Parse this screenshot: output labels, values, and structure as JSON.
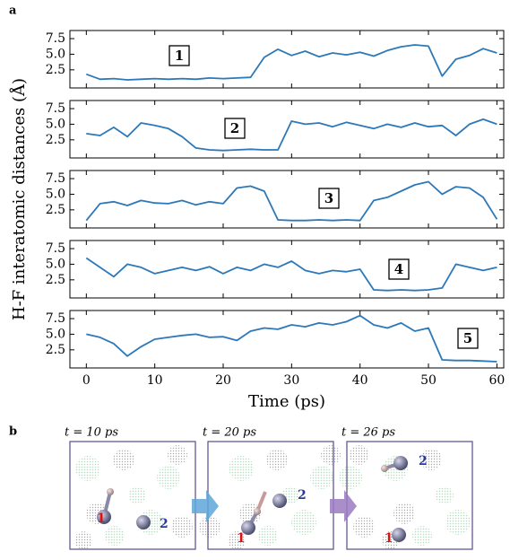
{
  "panel_a_label": "a",
  "shared_ylabel": "H-F interatomic distances (Å)",
  "chart_data": [
    {
      "type": "line",
      "annotation": "1",
      "color": "#2c78b8",
      "x": [
        0,
        2,
        4,
        6,
        8,
        10,
        12,
        14,
        16,
        18,
        20,
        22,
        24,
        26,
        28,
        30,
        32,
        34,
        36,
        38,
        40,
        42,
        44,
        46,
        48,
        50,
        52,
        54,
        56,
        58,
        60
      ],
      "values": [
        1.8,
        1.0,
        1.1,
        0.9,
        1.0,
        1.1,
        1.0,
        1.1,
        1.0,
        1.2,
        1.1,
        1.2,
        1.3,
        4.5,
        5.8,
        4.8,
        5.5,
        4.6,
        5.2,
        4.9,
        5.3,
        4.7,
        5.6,
        6.2,
        6.5,
        6.3,
        1.5,
        4.2,
        4.8,
        5.9,
        5.2
      ],
      "xlim": [
        -2.4,
        61
      ],
      "ylim": [
        -0.4,
        8.8
      ],
      "yticks": [
        2.5,
        {
          "value": 5,
          "label": "5.0"
        },
        7.5
      ],
      "xticks": [
        0,
        10,
        20,
        30,
        40,
        50,
        60
      ],
      "show_xtick_labels": false
    },
    {
      "type": "line",
      "annotation": "2",
      "color": "#2c78b8",
      "x": [
        0,
        2,
        4,
        6,
        8,
        10,
        12,
        14,
        16,
        18,
        20,
        22,
        24,
        26,
        28,
        30,
        32,
        34,
        36,
        38,
        40,
        42,
        44,
        46,
        48,
        50,
        52,
        54,
        56,
        58,
        60
      ],
      "values": [
        3.5,
        3.2,
        4.5,
        3.0,
        5.2,
        4.8,
        4.3,
        3.0,
        1.2,
        0.9,
        0.8,
        0.9,
        1.0,
        0.9,
        0.9,
        5.5,
        5.0,
        5.2,
        4.6,
        5.3,
        4.8,
        4.3,
        5.0,
        4.5,
        5.2,
        4.6,
        4.8,
        3.2,
        5.0,
        5.8,
        5.0
      ],
      "xlim": [
        -2.4,
        61
      ],
      "ylim": [
        -0.4,
        8.8
      ],
      "yticks": [
        2.5,
        {
          "value": 5,
          "label": "5.0"
        },
        7.5
      ],
      "xticks": [
        0,
        10,
        20,
        30,
        40,
        50,
        60
      ],
      "show_xtick_labels": false
    },
    {
      "type": "line",
      "annotation": "3",
      "color": "#2c78b8",
      "x": [
        0,
        2,
        4,
        6,
        8,
        10,
        12,
        14,
        16,
        18,
        20,
        22,
        24,
        26,
        28,
        30,
        32,
        34,
        36,
        38,
        40,
        42,
        44,
        46,
        48,
        50,
        52,
        54,
        56,
        58,
        60
      ],
      "values": [
        0.8,
        3.5,
        3.8,
        3.2,
        4.0,
        3.6,
        3.5,
        4.0,
        3.3,
        3.8,
        3.5,
        6.0,
        6.3,
        5.5,
        0.9,
        0.8,
        0.8,
        0.9,
        0.8,
        0.9,
        0.8,
        4.0,
        4.5,
        5.5,
        6.5,
        7.0,
        5.0,
        6.2,
        6.0,
        4.5,
        1.0
      ],
      "xlim": [
        -2.4,
        61
      ],
      "ylim": [
        -0.4,
        8.8
      ],
      "yticks": [
        2.5,
        {
          "value": 5,
          "label": "5.0"
        },
        7.5
      ],
      "xticks": [
        0,
        10,
        20,
        30,
        40,
        50,
        60
      ],
      "show_xtick_labels": false
    },
    {
      "type": "line",
      "annotation": "4",
      "color": "#2c78b8",
      "x": [
        0,
        2,
        4,
        6,
        8,
        10,
        12,
        14,
        16,
        18,
        20,
        22,
        24,
        26,
        28,
        30,
        32,
        34,
        36,
        38,
        40,
        42,
        44,
        46,
        48,
        50,
        52,
        54,
        56,
        58,
        60
      ],
      "values": [
        6.0,
        4.5,
        3.0,
        5.0,
        4.5,
        3.5,
        4.0,
        4.5,
        4.0,
        4.6,
        3.5,
        4.5,
        4.0,
        5.0,
        4.5,
        5.5,
        4.0,
        3.5,
        4.0,
        3.8,
        4.2,
        0.9,
        0.8,
        0.9,
        0.8,
        0.9,
        1.2,
        5.0,
        4.5,
        4.0,
        4.5
      ],
      "xlim": [
        -2.4,
        61
      ],
      "ylim": [
        -0.4,
        8.8
      ],
      "yticks": [
        2.5,
        {
          "value": 5,
          "label": "5.0"
        },
        7.5
      ],
      "xticks": [
        0,
        10,
        20,
        30,
        40,
        50,
        60
      ],
      "show_xtick_labels": false
    },
    {
      "type": "line",
      "annotation": "5",
      "color": "#2c78b8",
      "xlabel": "Time (ps)",
      "x": [
        0,
        2,
        4,
        6,
        8,
        10,
        12,
        14,
        16,
        18,
        20,
        22,
        24,
        26,
        28,
        30,
        32,
        34,
        36,
        38,
        40,
        42,
        44,
        46,
        48,
        50,
        52,
        54,
        56,
        58,
        60
      ],
      "values": [
        5.0,
        4.5,
        3.5,
        1.5,
        3.0,
        4.2,
        4.5,
        4.8,
        5.0,
        4.5,
        4.6,
        4.0,
        5.5,
        6.0,
        5.8,
        6.5,
        6.2,
        6.8,
        6.5,
        7.0,
        8.0,
        6.5,
        6.0,
        6.8,
        5.5,
        6.0,
        0.9,
        0.8,
        0.8,
        0.7,
        0.6
      ],
      "xlim": [
        -2.4,
        61
      ],
      "ylim": [
        -0.4,
        8.8
      ],
      "yticks": [
        2.5,
        {
          "value": 5,
          "label": "5.0"
        },
        7.5
      ],
      "xticks": [
        0,
        10,
        20,
        30,
        40,
        50,
        60
      ],
      "show_xtick_labels": true
    }
  ],
  "panel_b": {
    "label": "b",
    "snapshots": [
      {
        "time": "t = 10 ps",
        "atom1": "1",
        "atom2": "2"
      },
      {
        "time": "t = 20 ps",
        "atom1": "1",
        "atom2": "2"
      },
      {
        "time": "t = 26 ps",
        "atom1": "1",
        "atom2": "2"
      }
    ]
  }
}
